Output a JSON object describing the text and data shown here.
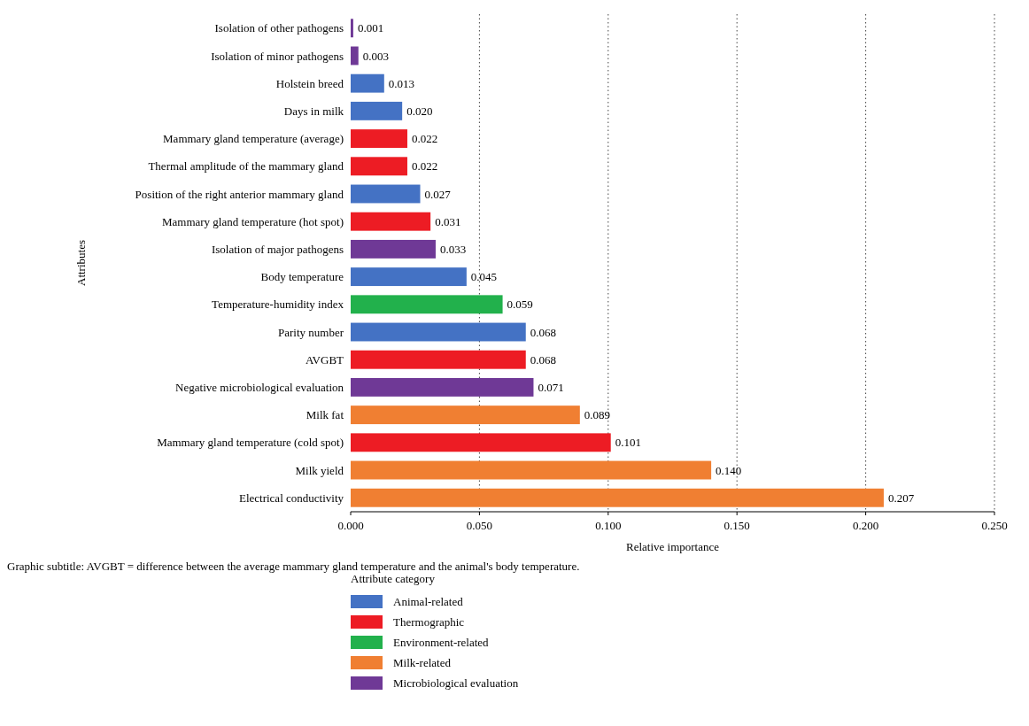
{
  "chart_data": {
    "type": "bar",
    "orientation": "horizontal",
    "categories": [
      "Isolation of other pathogens",
      "Isolation of minor pathogens",
      "Holstein breed",
      "Days in milk",
      "Mammary gland temperature (average)",
      "Thermal amplitude of the mammary gland",
      "Position of the right anterior mammary gland",
      "Mammary gland temperature (hot spot)",
      "Isolation of major pathogens",
      "Body temperature",
      "Temperature-humidity index",
      "Parity number",
      "AVGBT",
      "Negative microbiological evaluation",
      "Milk fat",
      "Mammary gland temperature (cold spot)",
      "Milk yield",
      "Electrical conductivity"
    ],
    "series": [
      {
        "name": "Animal-related",
        "color": "#4472c4",
        "values": [
          null,
          null,
          0.013,
          0.02,
          null,
          null,
          0.027,
          null,
          null,
          0.045,
          null,
          0.068,
          null,
          null,
          null,
          null,
          null,
          null
        ],
        "value_labels": [
          null,
          null,
          "0.013",
          "0.020",
          null,
          null,
          "0.027",
          null,
          null,
          "0.045",
          null,
          "0.068",
          null,
          null,
          null,
          null,
          null,
          null
        ]
      },
      {
        "name": "Thermographic",
        "color": "#ed1c24",
        "values": [
          null,
          null,
          null,
          null,
          0.022,
          0.022,
          null,
          0.031,
          null,
          null,
          null,
          null,
          0.068,
          null,
          null,
          0.101,
          null,
          null
        ],
        "value_labels": [
          null,
          null,
          null,
          null,
          "0.022",
          "0.022",
          null,
          "0.031",
          null,
          null,
          null,
          null,
          "0.068",
          null,
          null,
          "0.101",
          null,
          null
        ]
      },
      {
        "name": "Environment-related",
        "color": "#22b14c",
        "values": [
          null,
          null,
          null,
          null,
          null,
          null,
          null,
          null,
          null,
          null,
          0.059,
          null,
          null,
          null,
          null,
          null,
          null,
          null
        ],
        "value_labels": [
          null,
          null,
          null,
          null,
          null,
          null,
          null,
          null,
          null,
          null,
          "0.059",
          null,
          null,
          null,
          null,
          null,
          null,
          null
        ]
      },
      {
        "name": "Milk-related",
        "color": "#f07f32",
        "values": [
          null,
          null,
          null,
          null,
          null,
          null,
          null,
          null,
          null,
          null,
          null,
          null,
          null,
          null,
          0.089,
          null,
          0.14,
          0.207
        ],
        "value_labels": [
          null,
          null,
          null,
          null,
          null,
          null,
          null,
          null,
          null,
          null,
          null,
          null,
          null,
          null,
          "0.089",
          null,
          "0.140",
          "0.207"
        ]
      },
      {
        "name": "Microbiological evaluation",
        "color": "#6f3996",
        "values": [
          0.001,
          0.003,
          null,
          null,
          null,
          null,
          null,
          null,
          0.033,
          null,
          null,
          null,
          null,
          0.071,
          null,
          null,
          null,
          null
        ],
        "value_labels": [
          "0.001",
          "0.003",
          null,
          null,
          null,
          null,
          null,
          null,
          "0.033",
          null,
          null,
          null,
          null,
          "0.071",
          null,
          null,
          null,
          null
        ]
      }
    ],
    "xlim": [
      0,
      0.25
    ],
    "xticks": [
      {
        "value": 0,
        "label": "0.000"
      },
      {
        "value": 0.05,
        "label": "0.050"
      },
      {
        "value": 0.1,
        "label": "0.100"
      },
      {
        "value": 0.15,
        "label": "0.150"
      },
      {
        "value": 0.2,
        "label": "0.200"
      },
      {
        "value": 0.25,
        "label": "0.250"
      }
    ],
    "grid": "x",
    "xlabel": "Relative importance",
    "ylabel": "Attributes",
    "legend": "bottom",
    "legend_title": "Attribute category",
    "annotations": [
      "Graphic subtitle: AVGBT = difference between the average mammary gland temperature and the animal's body temperature."
    ]
  }
}
